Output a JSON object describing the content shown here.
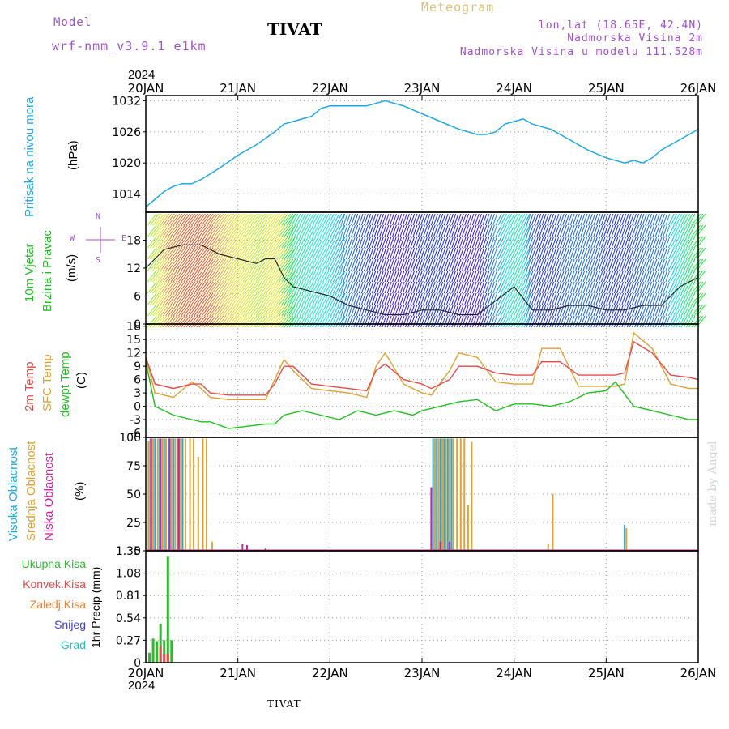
{
  "header": {
    "model_label": "Model",
    "model_name": "wrf-nmm_v3.9.1 e1km",
    "title": "TIVAT",
    "meteogram_label": "Meteogram",
    "location": "lon,lat (18.65E, 42.4N)",
    "elevation": "Nadmorska Visina 2m",
    "model_elevation": "Nadmorska Visina u modelu 111.528m",
    "footer": "TIVAT",
    "credit": "made by Angel"
  },
  "colors": {
    "pressure": "#1ea8e8",
    "temp2m": "#e84848",
    "sfc_temp": "#e0a030",
    "dewpt": "#20c020",
    "high_cloud": "#1ea8e8",
    "mid_cloud": "#e0a030",
    "low_cloud": "#d020a0",
    "total_precip": "#30b830",
    "conv_precip": "#e84848",
    "frozen_precip": "#f08030",
    "snow": "#4040d0",
    "hail": "#20c0c0",
    "model_label": "#a050d0",
    "meteogram_label": "#e0c070"
  },
  "time_axis": {
    "top_year": "2024",
    "bottom_year": "2024",
    "labels": [
      "20JAN",
      "21JAN",
      "22JAN",
      "23JAN",
      "24JAN",
      "25JAN",
      "26JAN"
    ]
  },
  "chart_data": [
    {
      "type": "line",
      "panel": "pressure",
      "ylabel_main": "Pritisak na nivou mora",
      "ylabel_unit": "(hPa)",
      "ylim": [
        1010.5,
        1033
      ],
      "yticks": [
        1014,
        1020,
        1026,
        1032
      ],
      "xlim": [
        0,
        6
      ],
      "grid": true,
      "series": [
        {
          "x": [
            0,
            0.1,
            0.2,
            0.3,
            0.4,
            0.5,
            0.6,
            0.8,
            1.0,
            1.2,
            1.4,
            1.5,
            1.6,
            1.8,
            1.9,
            2.0,
            2.2,
            2.4,
            2.6,
            2.8,
            3.0,
            3.2,
            3.4,
            3.6,
            3.7,
            3.8,
            3.9,
            4.0,
            4.1,
            4.2,
            4.4,
            4.6,
            4.8,
            5.0,
            5.2,
            5.3,
            5.4,
            5.5,
            5.6,
            5.8,
            6.0
          ],
          "y": [
            1011.5,
            1013,
            1014.5,
            1015.5,
            1016,
            1016,
            1016.8,
            1019,
            1021.5,
            1023.5,
            1026,
            1027.5,
            1028,
            1029,
            1030.5,
            1031,
            1031,
            1031,
            1032,
            1031,
            1029.5,
            1028,
            1026.5,
            1025.5,
            1025.5,
            1026,
            1027.5,
            1028,
            1028.5,
            1027.5,
            1026.5,
            1024.5,
            1022.5,
            1021,
            1020,
            1020.5,
            1020,
            1021,
            1022.5,
            1024.5,
            1026.5
          ]
        }
      ]
    },
    {
      "type": "line",
      "panel": "wind",
      "ylabel_main": "10m Vjetar",
      "ylabel_sub": "Brzina i Pravac",
      "ylabel_unit": "(m/s)",
      "compass_n": "N",
      "compass_e": "E",
      "compass_w": "W",
      "compass_s": "S",
      "ylim": [
        0,
        24
      ],
      "yticks": [
        0,
        6,
        12,
        18
      ],
      "grid": true,
      "series": [
        {
          "name": "speed",
          "x": [
            0,
            0.2,
            0.4,
            0.6,
            0.8,
            1.0,
            1.2,
            1.3,
            1.4,
            1.5,
            1.6,
            1.8,
            2.0,
            2.2,
            2.4,
            2.6,
            2.8,
            3.0,
            3.2,
            3.4,
            3.6,
            3.8,
            4.0,
            4.2,
            4.4,
            4.6,
            4.8,
            5.0,
            5.2,
            5.4,
            5.6,
            5.8,
            6.0
          ],
          "y": [
            12,
            16,
            17,
            17,
            15,
            14,
            13,
            14,
            14,
            10,
            8,
            7,
            6,
            4,
            3,
            2,
            2,
            3,
            3,
            2,
            2,
            5,
            8,
            3,
            3,
            4,
            4,
            3,
            3,
            4,
            4,
            8,
            10
          ]
        }
      ]
    },
    {
      "type": "line",
      "panel": "temperature",
      "ylabel_t2": "2m Temp",
      "ylabel_sfc": "SFC Temp",
      "ylabel_dew": "dewpt Temp",
      "ylabel_unit": "(C)",
      "ylim": [
        -7,
        18.5
      ],
      "yticks": [
        -6,
        -3,
        0,
        3,
        6,
        9,
        12,
        15,
        18
      ],
      "grid": true,
      "series": [
        {
          "name": "2m Temp",
          "x": [
            0,
            0.1,
            0.3,
            0.5,
            0.6,
            0.7,
            0.9,
            1.1,
            1.3,
            1.4,
            1.5,
            1.6,
            1.8,
            2.0,
            2.2,
            2.4,
            2.5,
            2.6,
            2.8,
            3.0,
            3.1,
            3.3,
            3.4,
            3.6,
            3.8,
            4.0,
            4.2,
            4.3,
            4.5,
            4.7,
            4.9,
            5.1,
            5.2,
            5.3,
            5.5,
            5.7,
            5.9,
            6.0
          ],
          "y": [
            11,
            5,
            4,
            5,
            5,
            3,
            2.5,
            2.5,
            2.5,
            5,
            9,
            9,
            5,
            4.5,
            4,
            3.5,
            8,
            9.5,
            6,
            5,
            4,
            6,
            9,
            9,
            7.5,
            7,
            7,
            10,
            10,
            7,
            7,
            7,
            7.5,
            14.5,
            12,
            7,
            6.5,
            6
          ]
        },
        {
          "name": "SFC Temp",
          "x": [
            0,
            0.1,
            0.3,
            0.5,
            0.6,
            0.7,
            0.9,
            1.1,
            1.3,
            1.4,
            1.5,
            1.6,
            1.8,
            2.0,
            2.2,
            2.4,
            2.5,
            2.6,
            2.8,
            3.0,
            3.1,
            3.3,
            3.4,
            3.6,
            3.8,
            4.0,
            4.2,
            4.3,
            4.5,
            4.7,
            4.9,
            5.1,
            5.2,
            5.3,
            5.5,
            5.7,
            5.9,
            6.0
          ],
          "y": [
            11,
            3,
            2,
            5.5,
            4,
            2,
            1.5,
            1.5,
            1.5,
            6,
            10.5,
            8,
            4,
            3.5,
            3,
            2,
            9,
            12,
            5,
            3,
            2.5,
            8,
            12,
            11,
            5.5,
            5,
            5,
            13,
            13,
            4.5,
            4.5,
            4.5,
            5,
            16.5,
            13,
            5,
            4,
            4
          ]
        },
        {
          "name": "dewpt Temp",
          "x": [
            0,
            0.1,
            0.3,
            0.5,
            0.6,
            0.7,
            0.9,
            1.1,
            1.3,
            1.4,
            1.5,
            1.7,
            1.9,
            2.1,
            2.3,
            2.5,
            2.7,
            2.9,
            3.0,
            3.2,
            3.4,
            3.6,
            3.8,
            4.0,
            4.2,
            4.4,
            4.6,
            4.8,
            5.0,
            5.1,
            5.3,
            5.5,
            5.7,
            5.9,
            6.0
          ],
          "y": [
            10,
            0,
            -2,
            -3,
            -3.5,
            -3.5,
            -5,
            -4.5,
            -4,
            -4,
            -2,
            -1,
            -2,
            -3,
            -1,
            -2,
            -1,
            -2,
            -1,
            0,
            1,
            1.5,
            -1,
            0.5,
            0.5,
            0,
            1,
            3,
            3.5,
            5.5,
            0,
            -1,
            -2,
            -3,
            -3
          ]
        }
      ]
    },
    {
      "type": "bar",
      "panel": "cloud",
      "ylabel_high": "Visoka Oblacnost",
      "ylabel_mid": "Srednja Oblacnost",
      "ylabel_low": "Niska Oblacnost",
      "ylabel_unit": "(%)",
      "ylim": [
        0,
        100
      ],
      "yticks": [
        0,
        25,
        50,
        75,
        100
      ],
      "grid": true,
      "series": [
        {
          "name": "Visoka",
          "x": [
            0.05,
            0.1,
            0.15,
            0.2,
            0.25,
            0.3,
            0.35,
            0.4,
            3.12,
            3.16,
            3.2,
            3.24,
            3.28,
            3.32,
            5.2
          ],
          "values": [
            99,
            99,
            99,
            99,
            99,
            99,
            99,
            99,
            99,
            99,
            99,
            99,
            99,
            99,
            23
          ]
        },
        {
          "name": "Srednja",
          "x": [
            0.03,
            0.08,
            0.13,
            0.18,
            0.22,
            0.28,
            0.32,
            0.38,
            0.43,
            0.48,
            0.52,
            0.57,
            0.62,
            0.66,
            0.72,
            3.14,
            3.18,
            3.22,
            3.26,
            3.3,
            3.34,
            3.38,
            3.42,
            3.46,
            3.5,
            3.54,
            4.37,
            4.42,
            5.22
          ],
          "values": [
            97,
            99,
            99,
            99,
            99,
            99,
            99,
            99,
            99,
            99,
            99,
            83,
            99,
            99,
            8,
            99,
            99,
            99,
            99,
            99,
            99,
            99,
            99,
            99,
            40,
            96,
            6,
            50,
            20
          ]
        },
        {
          "name": "Niska",
          "x": [
            0.06,
            0.16,
            0.26,
            0.36,
            1.05,
            1.1,
            1.3,
            3.1,
            3.2,
            3.3
          ],
          "values": [
            99,
            99,
            99,
            99,
            6,
            5,
            2,
            56,
            8,
            8
          ]
        }
      ]
    },
    {
      "type": "bar",
      "panel": "precip",
      "ylabel": "1hr Precip (mm)",
      "legend": [
        "Ukupna Kisa",
        "Konvek.Kisa",
        "Zaledj.Kisa",
        "Snijeg",
        "Grad"
      ],
      "ylim": [
        0,
        1.35
      ],
      "yticks": [
        0,
        0.27,
        0.54,
        0.81,
        1.08,
        1.35
      ],
      "grid": true,
      "series": [
        {
          "name": "Ukupna Kisa",
          "x": [
            0.04,
            0.08,
            0.12,
            0.16,
            0.2,
            0.24,
            0.28
          ],
          "values": [
            0.12,
            0.29,
            0.26,
            0.47,
            0.27,
            1.28,
            0.27
          ]
        },
        {
          "name": "Konvek.Kisa",
          "x": [
            0.16,
            0.2,
            0.24
          ],
          "values": [
            0.2,
            0.1,
            0.1
          ]
        }
      ]
    }
  ]
}
